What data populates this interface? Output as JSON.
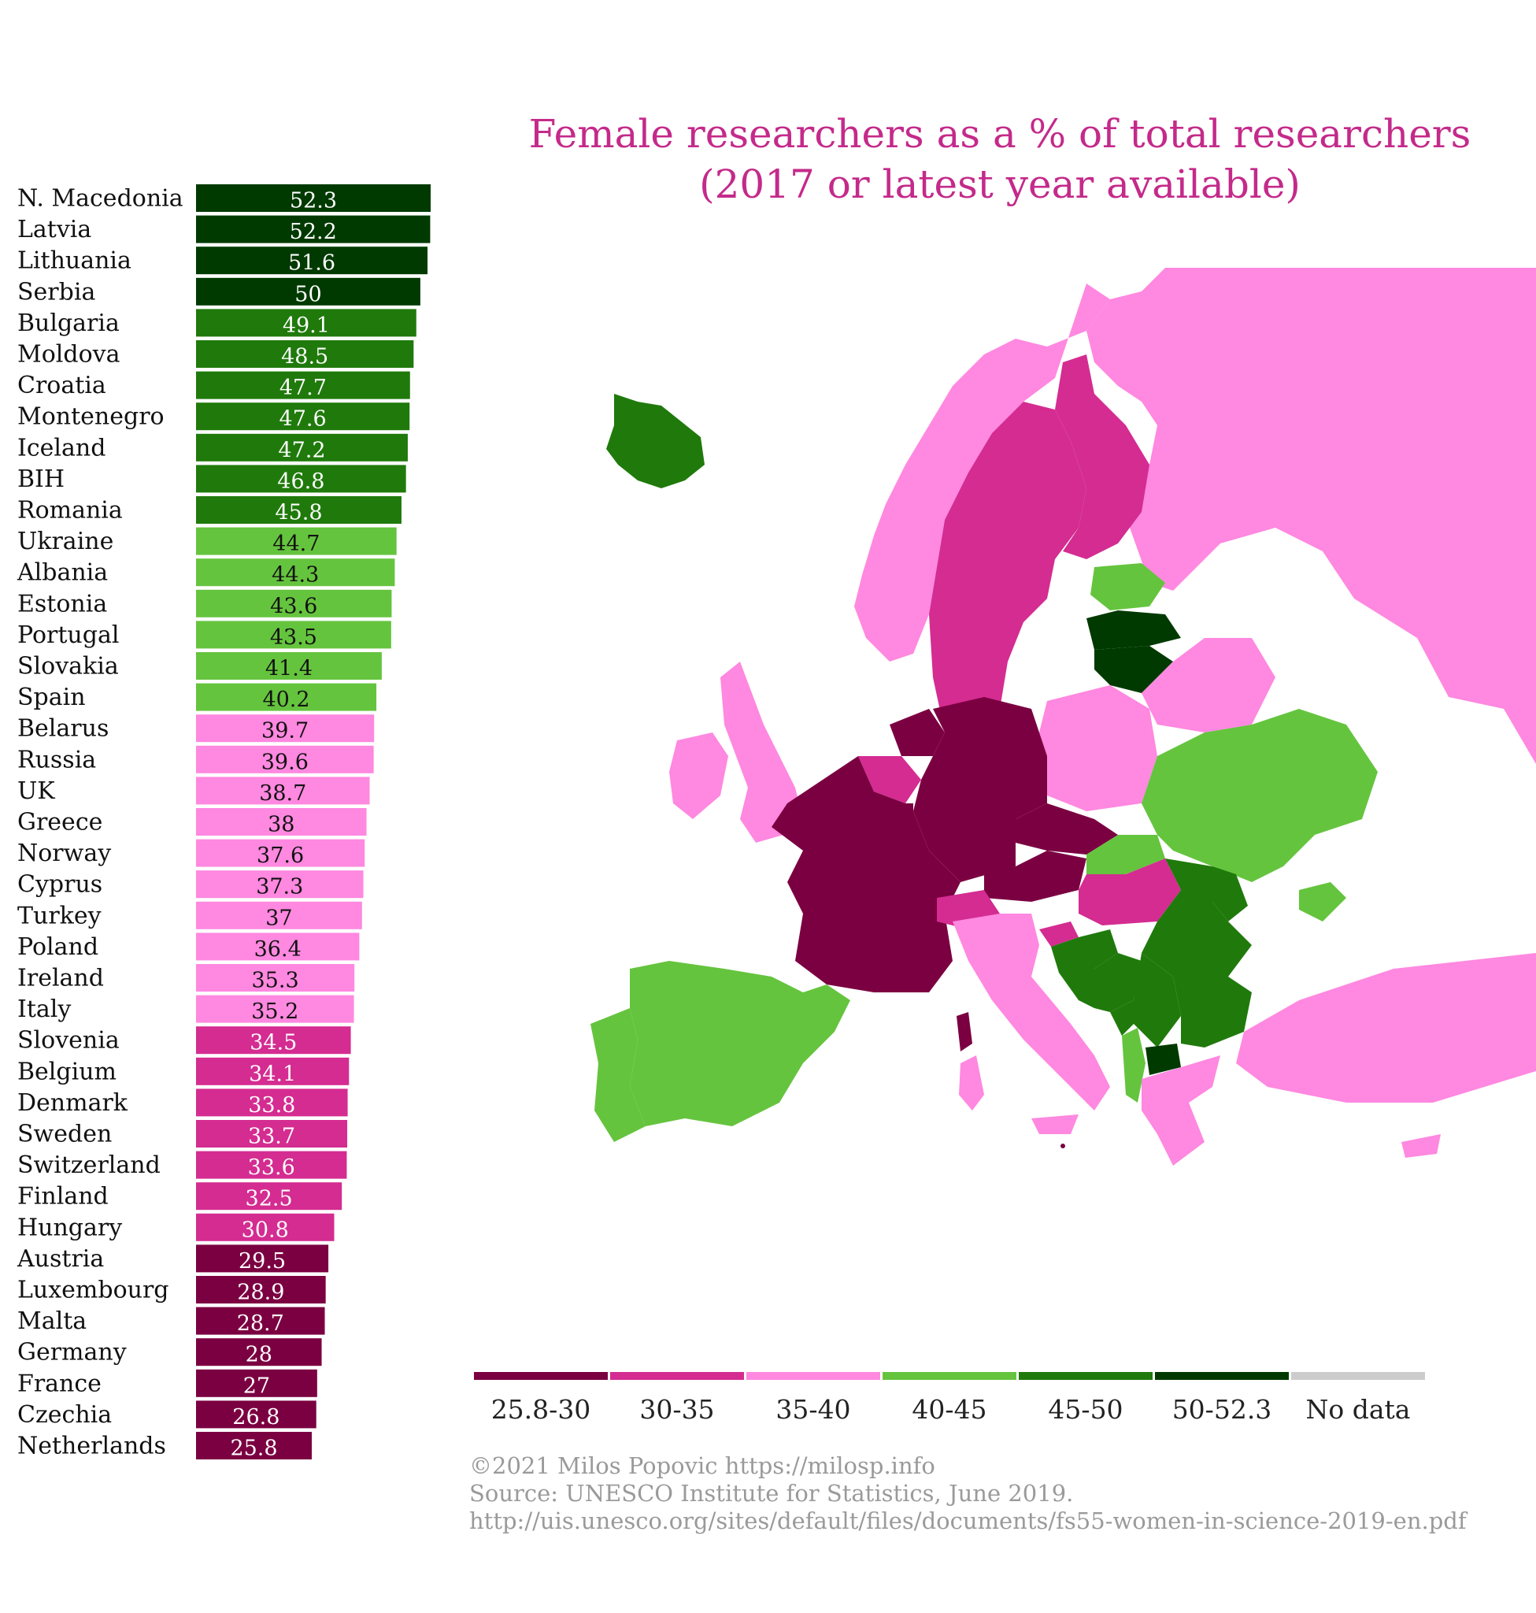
{
  "title": {
    "line1": "Female researchers as a % of total researchers",
    "line2": "(2017 or latest year available)"
  },
  "colors": {
    "c1": "#7b0041",
    "c2": "#d42c91",
    "c3": "#ff88e0",
    "c4": "#65c43e",
    "c5": "#1f7a0b",
    "c6": "#003a00",
    "nodata": "#cccccc"
  },
  "chart_data": {
    "type": "bar",
    "orientation": "horizontal",
    "title": "Female researchers as a % of total researchers (2017 or latest year available)",
    "categories": [
      "N. Macedonia",
      "Latvia",
      "Lithuania",
      "Serbia",
      "Bulgaria",
      "Moldova",
      "Croatia",
      "Montenegro",
      "Iceland",
      "BIH",
      "Romania",
      "Ukraine",
      "Albania",
      "Estonia",
      "Portugal",
      "Slovakia",
      "Spain",
      "Belarus",
      "Russia",
      "UK",
      "Greece",
      "Norway",
      "Cyprus",
      "Turkey",
      "Poland",
      "Ireland",
      "Italy",
      "Slovenia",
      "Belgium",
      "Denmark",
      "Sweden",
      "Switzerland",
      "Finland",
      "Hungary",
      "Austria",
      "Luxembourg",
      "Malta",
      "Germany",
      "France",
      "Czechia",
      "Netherlands"
    ],
    "values": [
      52.3,
      52.2,
      51.6,
      50,
      49.1,
      48.5,
      47.7,
      47.6,
      47.2,
      46.8,
      45.8,
      44.7,
      44.3,
      43.6,
      43.5,
      41.4,
      40.2,
      39.7,
      39.6,
      38.7,
      38,
      37.6,
      37.3,
      37,
      36.4,
      35.3,
      35.2,
      34.5,
      34.1,
      33.8,
      33.7,
      33.6,
      32.5,
      30.8,
      29.5,
      28.9,
      28.7,
      28,
      27,
      26.8,
      25.8
    ],
    "labels": [
      "52.3",
      "52.2",
      "51.6",
      "50",
      "49.1",
      "48.5",
      "47.7",
      "47.6",
      "47.2",
      "46.8",
      "45.8",
      "44.7",
      "44.3",
      "43.6",
      "43.5",
      "41.4",
      "40.2",
      "39.7",
      "39.6",
      "38.7",
      "38",
      "37.6",
      "37.3",
      "37",
      "36.4",
      "35.3",
      "35.2",
      "34.5",
      "34.1",
      "33.8",
      "33.7",
      "33.6",
      "32.5",
      "30.8",
      "29.5",
      "28.9",
      "28.7",
      "28",
      "27",
      "26.8",
      "25.8"
    ]
  },
  "legend": {
    "items": [
      {
        "label": "25.8-30",
        "color": "#7b0041"
      },
      {
        "label": "30-35",
        "color": "#d42c91"
      },
      {
        "label": "35-40",
        "color": "#ff88e0"
      },
      {
        "label": "40-45",
        "color": "#65c43e"
      },
      {
        "label": "45-50",
        "color": "#1f7a0b"
      },
      {
        "label": "50-52.3",
        "color": "#003a00"
      },
      {
        "label": "No data",
        "color": "#cccccc"
      }
    ]
  },
  "credits": {
    "line1": "©2021 Milos Popovic https://milosp.info",
    "line2": "Source: UNESCO Institute for Statistics, June 2019.",
    "line3": "http://uis.unesco.org/sites/default/files/documents/fs55-women-in-science-2019-en.pdf"
  }
}
